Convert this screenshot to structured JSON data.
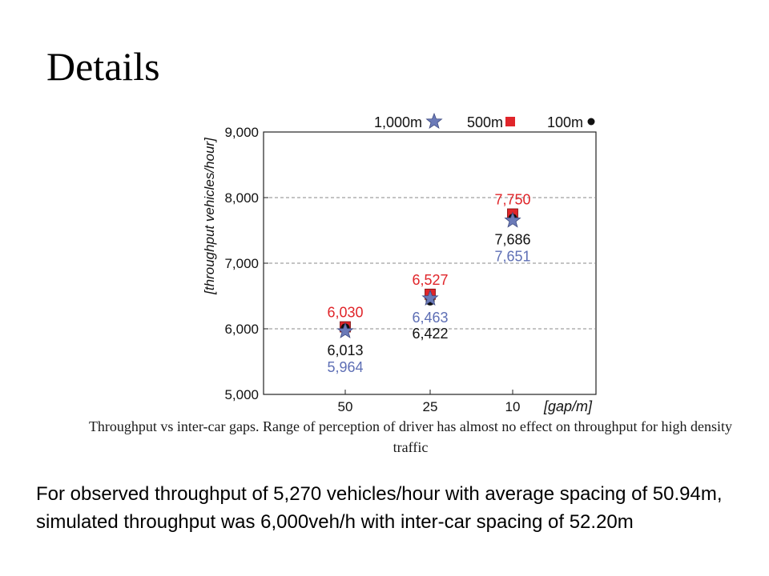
{
  "slide": {
    "title": "Details",
    "caption": "Throughput vs inter-car gaps. Range of perception of driver has almost no effect on throughput for high density traffic",
    "body": "For observed throughput of 5,270 vehicles/hour with average spacing of 50.94m, simulated throughput was 6,000veh/h with inter-car spacing of 52.20m"
  },
  "chart_data": {
    "type": "scatter",
    "title": "",
    "xlabel": "[gap/m]",
    "ylabel": "[throughput vehicles/hour]",
    "categories": [
      "50",
      "25",
      "10"
    ],
    "ylim": [
      5000,
      9000
    ],
    "yticks": [
      "5,000",
      "6,000",
      "7,000",
      "8,000",
      "9,000"
    ],
    "grid": "horizontal dashed",
    "legend_placement": "top, above plot",
    "series": [
      {
        "name": "1,000m",
        "marker": "star",
        "color": "#6b7ab8",
        "values": [
          5964,
          6463,
          7651
        ],
        "labels": [
          "5,964",
          "6,463",
          "7,651"
        ]
      },
      {
        "name": "500m",
        "marker": "square",
        "color": "#e0252a",
        "values": [
          6030,
          6527,
          7750
        ],
        "labels": [
          "6,030",
          "6,527",
          "7,750"
        ]
      },
      {
        "name": "100m",
        "marker": "circle",
        "color": "#111111",
        "values": [
          6013,
          6422,
          7686
        ],
        "labels": [
          "6,013",
          "6,422",
          "7,686"
        ]
      }
    ]
  }
}
